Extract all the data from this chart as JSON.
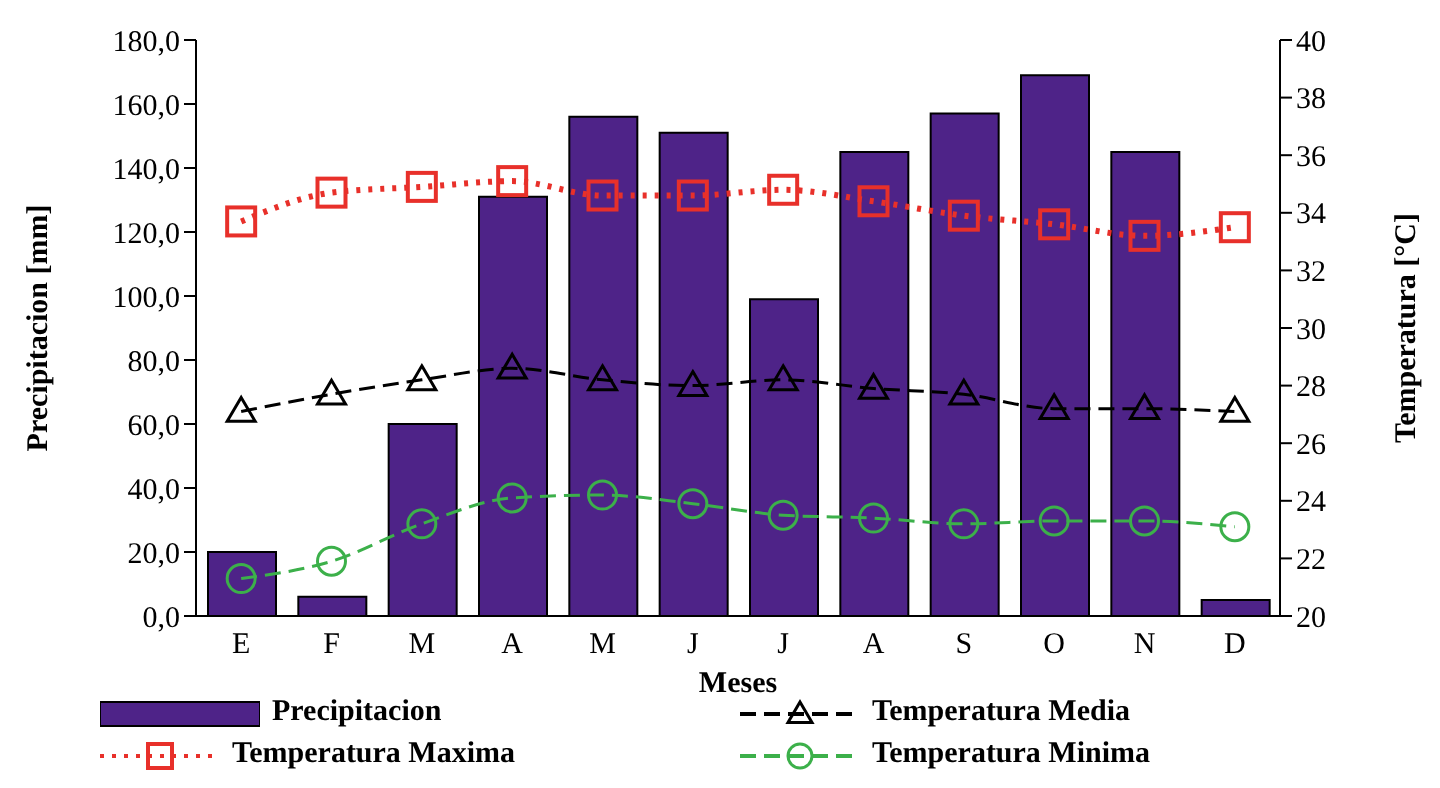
{
  "chart_data": {
    "type": "bar",
    "xlabel": "Meses",
    "ylabel": "Precipitacion [mm]",
    "y2label": "Temperatura [°C]",
    "categories": [
      "E",
      "F",
      "M",
      "A",
      "M",
      "J",
      "J",
      "A",
      "S",
      "O",
      "N",
      "D"
    ],
    "series": [
      {
        "name": "Precipitacion",
        "color": "#4e2388",
        "values": [
          20,
          6,
          60,
          131,
          156,
          151,
          99,
          145,
          157,
          169,
          145,
          5
        ]
      },
      {
        "name": "Temperatura Media",
        "type": "line",
        "axis": "y2",
        "color": "#000000",
        "marker": "triangle",
        "line_style": "dashed",
        "values": [
          27.1,
          27.7,
          28.2,
          28.6,
          28.2,
          28.0,
          28.2,
          27.9,
          27.7,
          27.2,
          27.2,
          27.1
        ]
      },
      {
        "name": "Temperatura Maxima",
        "type": "line",
        "axis": "y2",
        "color": "#e8302a",
        "marker": "square",
        "line_style": "dotted",
        "values": [
          33.7,
          34.7,
          34.9,
          35.1,
          34.6,
          34.6,
          34.8,
          34.4,
          33.9,
          33.6,
          33.2,
          33.5
        ]
      },
      {
        "name": "Temperatura Minima",
        "type": "line",
        "axis": "y2",
        "color": "#3cb04a",
        "marker": "circle",
        "line_style": "dashed",
        "values": [
          21.3,
          21.9,
          23.2,
          24.1,
          24.2,
          23.9,
          23.5,
          23.4,
          23.2,
          23.3,
          23.3,
          23.1
        ]
      }
    ],
    "ylim": [
      0,
      180
    ],
    "yticks": [
      {
        "value": 0,
        "label": "0,0"
      },
      {
        "value": 20,
        "label": "20,0"
      },
      {
        "value": 40,
        "label": "40,0"
      },
      {
        "value": 60,
        "label": "60,0"
      },
      {
        "value": 80,
        "label": "80,0"
      },
      {
        "value": 100,
        "label": "100,0"
      },
      {
        "value": 120,
        "label": "120,0"
      },
      {
        "value": 140,
        "label": "140,0"
      },
      {
        "value": 160,
        "label": "160,0"
      },
      {
        "value": 180,
        "label": "180,0"
      }
    ],
    "y2lim": [
      20,
      40
    ],
    "y2ticks": [
      20,
      22,
      24,
      26,
      28,
      30,
      32,
      34,
      36,
      38,
      40
    ],
    "grid": false,
    "legend": "bottom"
  }
}
